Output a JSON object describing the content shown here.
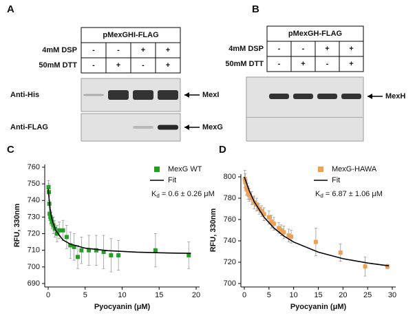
{
  "panels": [
    {
      "label": "A",
      "construct": "pMexGHI-FLAG",
      "rows": [
        {
          "label": "4mM DSP",
          "signs": [
            "-",
            "-",
            "+",
            "+"
          ]
        },
        {
          "label": "50mM DTT",
          "signs": [
            "-",
            "+",
            "-",
            "+"
          ]
        }
      ],
      "blots": [
        {
          "label": "Anti-His",
          "band": "MexI"
        },
        {
          "label": "Anti-FLAG",
          "band": "MexG"
        }
      ]
    },
    {
      "label": "B",
      "construct": "pMexGH-FLAG",
      "rows": [
        {
          "label": "4mM DSP",
          "signs": [
            "-",
            "-",
            "+",
            "+"
          ]
        },
        {
          "label": "50mM DTT",
          "signs": [
            "-",
            "+",
            "-",
            "+"
          ]
        }
      ],
      "blots": [
        {
          "band": "MexH"
        }
      ]
    }
  ],
  "chart_data": [
    {
      "type": "scatter",
      "label": "C",
      "x_label": "Pyocyanin (μM)",
      "y_label": "RFU, 330nm",
      "xlim": [
        0,
        20
      ],
      "ylim": [
        690,
        760
      ],
      "xticks": [
        0,
        5,
        10,
        15,
        20
      ],
      "yticks": [
        690,
        700,
        710,
        720,
        730,
        740,
        750,
        760
      ],
      "annotation": {
        "symbol": "K",
        "subscript": "d",
        "text": " = 0.6 ± 0.26 μM"
      },
      "series": [
        {
          "name": "MexG WT",
          "color": "#22a022",
          "mark": "square",
          "x": [
            0.05,
            0.1,
            0.15,
            0.2,
            0.3,
            0.4,
            0.5,
            0.7,
            0.9,
            1.2,
            1.5,
            2,
            2.5,
            3,
            3.5,
            4,
            4.5,
            5.5,
            6.5,
            7.5,
            8.5,
            9.5,
            14.5,
            19
          ],
          "values": [
            748,
            745,
            738,
            732,
            730,
            729,
            727,
            725,
            723,
            720,
            722,
            722,
            718,
            713,
            712,
            706,
            710,
            710,
            710,
            709,
            707,
            707,
            710,
            707
          ],
          "errors": [
            4,
            5,
            5,
            4,
            4,
            4,
            4,
            5,
            5,
            5,
            5,
            6,
            7,
            8,
            8,
            7,
            8,
            9,
            9,
            10,
            10,
            9,
            10,
            8
          ]
        },
        {
          "name": "Fit",
          "color": "#000000",
          "mark": "line",
          "x": [
            0,
            0.25,
            0.5,
            1,
            2,
            3,
            5,
            8,
            12,
            16,
            19.3
          ],
          "values": [
            747,
            735.2,
            728.8,
            722,
            716.2,
            713.7,
            711.3,
            709.8,
            708.9,
            708.4,
            708.2
          ]
        }
      ]
    },
    {
      "type": "scatter",
      "label": "D",
      "x_label": "Pyocyanin (μM)",
      "y_label": "RFU, 330nm",
      "xlim": [
        0,
        30
      ],
      "ylim": [
        700,
        800
      ],
      "xticks": [
        0,
        5,
        10,
        15,
        20,
        25,
        30
      ],
      "yticks": [
        700,
        720,
        740,
        760,
        780,
        800
      ],
      "annotation": {
        "symbol": "K",
        "subscript": "d",
        "text": " = 6.87 ± 1.06 μM"
      },
      "series": [
        {
          "name": "MexG-HAWA",
          "color": "#f0a050",
          "mark": "square",
          "x": [
            0.1,
            0.2,
            0.4,
            0.6,
            0.8,
            1,
            1.5,
            2,
            2.5,
            3,
            3.5,
            4,
            5,
            5.5,
            6,
            7,
            7.5,
            8,
            9,
            9.5,
            14.5,
            19.5,
            24.5,
            29
          ],
          "values": [
            798,
            795,
            790,
            788,
            785,
            783,
            780,
            776,
            774,
            770,
            768,
            765,
            762,
            758,
            756,
            752,
            750,
            748,
            745,
            744,
            739,
            729,
            716,
            716
          ],
          "errors": [
            8,
            8,
            7,
            6,
            6,
            6,
            6,
            6,
            6,
            5,
            5,
            6,
            6,
            6,
            6,
            5,
            5,
            6,
            6,
            6,
            13,
            8,
            9,
            2
          ]
        },
        {
          "name": "Fit",
          "color": "#000000",
          "mark": "line",
          "x": [
            0,
            1,
            2,
            4,
            6,
            8,
            10,
            15,
            20,
            25,
            29.3
          ],
          "values": [
            800,
            787,
            776.8,
            762.1,
            752,
            744.6,
            738.9,
            729.4,
            723.3,
            719.2,
            716.6
          ]
        }
      ]
    }
  ]
}
